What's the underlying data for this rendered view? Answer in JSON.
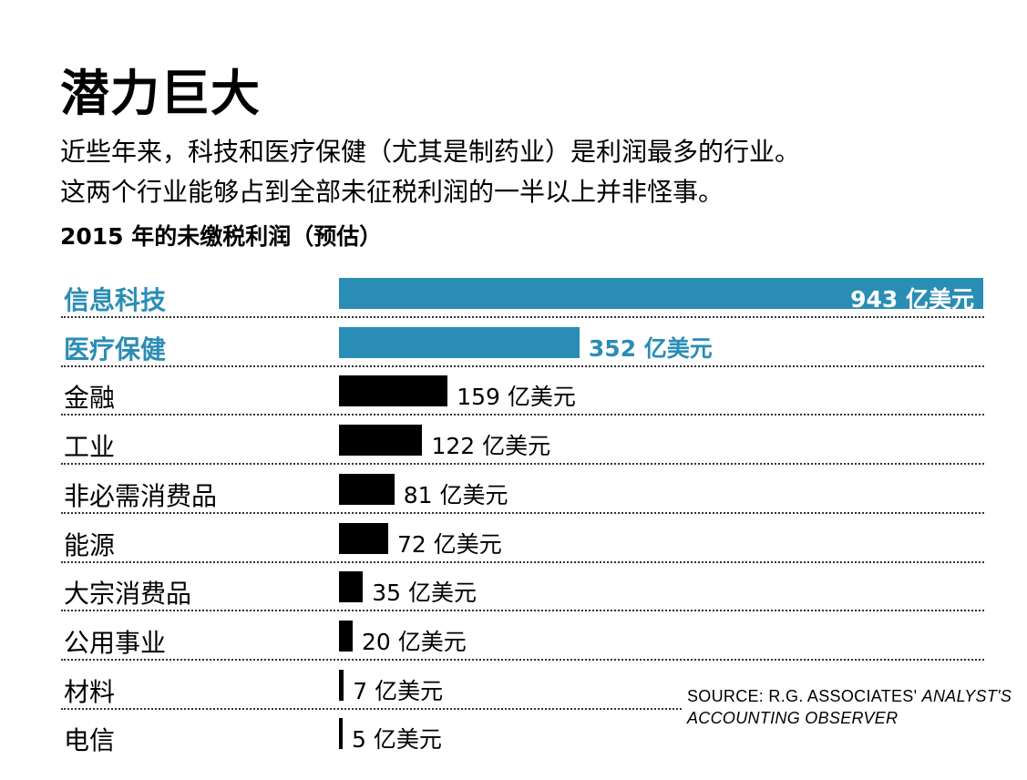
{
  "title": "潜力巨大",
  "subtitle_lines": [
    "近些年来，科技和医疗保健（尤其是制药业）是利润最多的行业。",
    "这两个行业能够占到全部未征税利润的一半以上并非怪事。"
  ],
  "source": {
    "prefix": "SOURCE: R.G. ASSOCIATES' ",
    "italic": "ANALYST'S ACCOUNTING OBSERVER"
  },
  "colors": {
    "highlight": "#2a8db5",
    "default": "#000000"
  },
  "chart_data": {
    "type": "bar",
    "orientation": "horizontal",
    "title": "2015 年的未缴税利润（预估）",
    "unit": "亿美元",
    "categories": [
      "信息科技",
      "医疗保健",
      "金融",
      "工业",
      "非必需消费品",
      "能源",
      "大宗消费品",
      "公用事业",
      "材料",
      "电信"
    ],
    "values": [
      943,
      352,
      159,
      122,
      81,
      72,
      35,
      20,
      7,
      5
    ],
    "value_labels": [
      "943 亿美元",
      "352 亿美元",
      "159 亿美元",
      "122 亿美元",
      "81 亿美元",
      "72 亿美元",
      "35 亿美元",
      "20 亿美元",
      "7 亿美元",
      "5 亿美元"
    ],
    "highlighted": [
      true,
      true,
      false,
      false,
      false,
      false,
      false,
      false,
      false,
      false
    ],
    "xlim": [
      0,
      943
    ],
    "grid": false
  }
}
